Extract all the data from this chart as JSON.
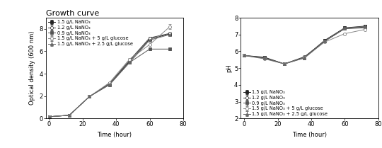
{
  "title_left": "Growth curve",
  "xlabel": "Time (hour)",
  "ylabel_left": "Optical density (600 nm)",
  "ylabel_right": "pH",
  "time": [
    0,
    12,
    24,
    36,
    48,
    60,
    72
  ],
  "od_series": {
    "1.5 g/L NaNO₃": [
      0.15,
      0.28,
      1.95,
      3.1,
      5.1,
      7.1,
      7.55
    ],
    "1.2 g/L NaNO₃": [
      0.15,
      0.28,
      1.95,
      3.1,
      5.2,
      7.2,
      7.6
    ],
    "0.9 g/L NaNO₃": [
      0.15,
      0.28,
      1.95,
      3.0,
      5.0,
      6.2,
      6.2
    ],
    "1.5 g/L NaNO₃ + 5 g/L glucose": [
      0.15,
      0.28,
      1.95,
      3.2,
      5.3,
      6.6,
      8.2
    ],
    "1.5 g/L NaNO₃ + 2.5 g/L glucose": [
      0.15,
      0.28,
      1.95,
      3.05,
      5.0,
      7.0,
      7.5
    ]
  },
  "od_errors": {
    "1.5 g/L NaNO₃": [
      0.01,
      0.02,
      0.04,
      0.07,
      0.08,
      0.08,
      0.08
    ],
    "1.2 g/L NaNO₃": [
      0.01,
      0.02,
      0.04,
      0.07,
      0.08,
      0.08,
      0.08
    ],
    "0.9 g/L NaNO₃": [
      0.01,
      0.02,
      0.04,
      0.07,
      0.08,
      0.08,
      0.08
    ],
    "1.5 g/L NaNO₃ + 5 g/L glucose": [
      0.01,
      0.02,
      0.04,
      0.07,
      0.08,
      0.08,
      0.22
    ],
    "1.5 g/L NaNO₃ + 2.5 g/L glucose": [
      0.01,
      0.02,
      0.04,
      0.07,
      0.08,
      0.08,
      0.08
    ]
  },
  "ph_series": {
    "1.5 g/L NaNO₃": [
      5.75,
      5.65,
      5.25,
      5.65,
      6.65,
      7.4,
      7.5
    ],
    "1.2 g/L NaNO₃": [
      5.75,
      5.62,
      5.25,
      5.68,
      6.6,
      7.35,
      7.45
    ],
    "0.9 g/L NaNO₃": [
      5.75,
      5.6,
      5.25,
      5.6,
      6.6,
      7.35,
      7.4
    ],
    "1.5 g/L NaNO₃ + 5 g/L glucose": [
      5.75,
      5.55,
      5.25,
      5.62,
      6.55,
      7.05,
      7.3
    ],
    "1.5 g/L NaNO₃ + 2.5 g/L glucose": [
      5.75,
      5.58,
      5.25,
      5.62,
      6.6,
      7.38,
      7.48
    ]
  },
  "ph_errors": {
    "1.5 g/L NaNO₃": [
      0.01,
      0.01,
      0.01,
      0.01,
      0.02,
      0.02,
      0.02
    ],
    "1.2 g/L NaNO₃": [
      0.01,
      0.01,
      0.01,
      0.01,
      0.02,
      0.02,
      0.02
    ],
    "0.9 g/L NaNO₃": [
      0.01,
      0.01,
      0.01,
      0.01,
      0.02,
      0.02,
      0.02
    ],
    "1.5 g/L NaNO₃ + 5 g/L glucose": [
      0.01,
      0.01,
      0.01,
      0.01,
      0.02,
      0.02,
      0.02
    ],
    "1.5 g/L NaNO₃ + 2.5 g/L glucose": [
      0.01,
      0.01,
      0.01,
      0.01,
      0.02,
      0.02,
      0.02
    ]
  },
  "series_styles": {
    "1.5 g/L NaNO₃": {
      "marker": "s",
      "fillstyle": "full",
      "color": "#222222",
      "linestyle": "-"
    },
    "1.2 g/L NaNO₃": {
      "marker": "o",
      "fillstyle": "none",
      "color": "#444444",
      "linestyle": "-"
    },
    "0.9 g/L NaNO₃": {
      "marker": "s",
      "fillstyle": "full",
      "color": "#555555",
      "linestyle": "-"
    },
    "1.5 g/L NaNO₃ + 5 g/L glucose": {
      "marker": "o",
      "fillstyle": "none",
      "color": "#888888",
      "linestyle": "-"
    },
    "1.5 g/L NaNO₃ + 2.5 g/L glucose": {
      "marker": "^",
      "fillstyle": "full",
      "color": "#666666",
      "linestyle": "-"
    }
  },
  "xlim": [
    -2,
    78
  ],
  "od_ylim": [
    0,
    9
  ],
  "ph_ylim": [
    2,
    8
  ],
  "od_yticks": [
    0,
    2,
    4,
    6,
    8
  ],
  "ph_yticks": [
    2,
    3,
    4,
    5,
    6,
    7,
    8
  ],
  "xticks": [
    0,
    20,
    40,
    60,
    80
  ],
  "fontsize": 6,
  "title_fontsize": 8,
  "legend_fontsize": 4.8,
  "markersize": 3,
  "linewidth": 0.7,
  "capsize": 1.5,
  "elinewidth": 0.7,
  "background_color": "white"
}
